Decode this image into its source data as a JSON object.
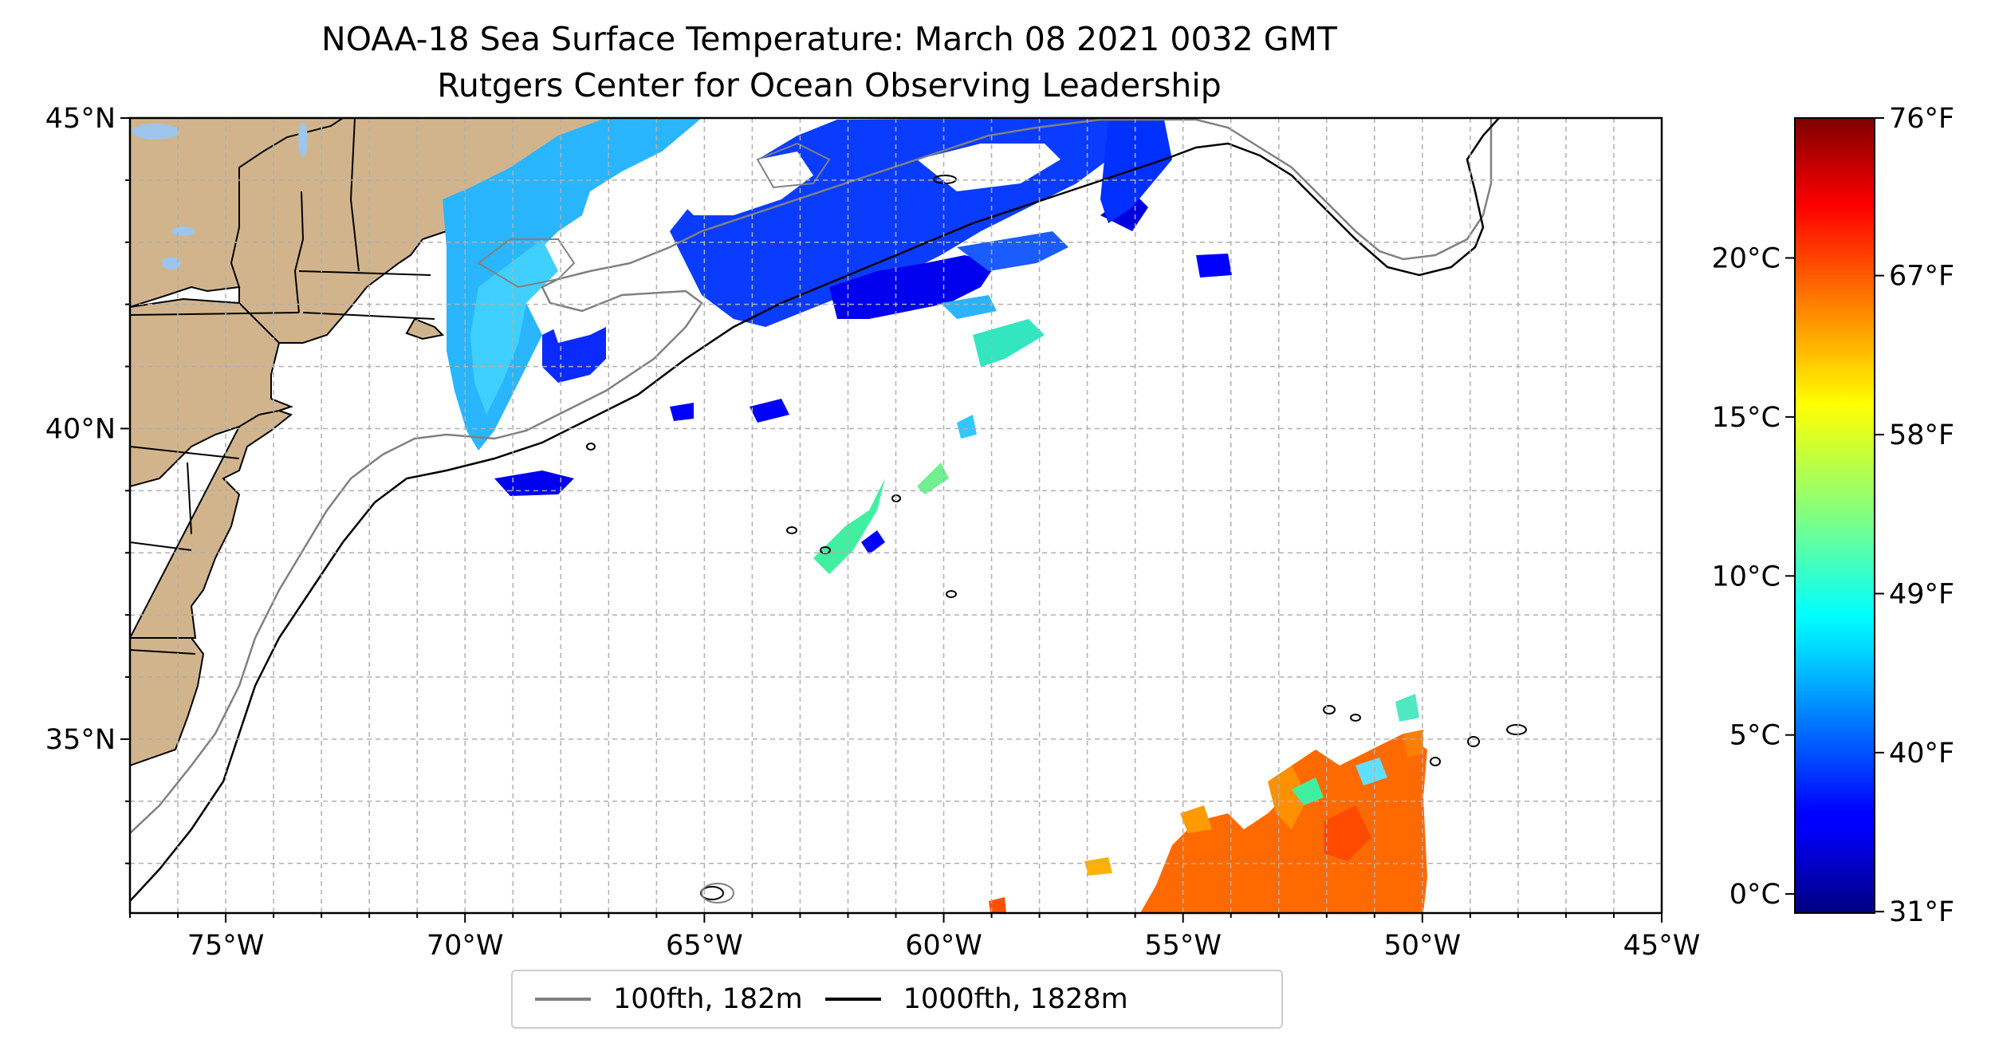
{
  "title": {
    "line1": "NOAA-18 Sea Surface Temperature: March 08 2021 0032 GMT",
    "line2": "Rutgers Center for Ocean Observing Leadership"
  },
  "map": {
    "lon_range": [
      -77,
      -45
    ],
    "lat_range": [
      32.2,
      45
    ],
    "lon_ticks": [
      {
        "value": -75,
        "label": "75°W"
      },
      {
        "value": -70,
        "label": "70°W"
      },
      {
        "value": -65,
        "label": "65°W"
      },
      {
        "value": -60,
        "label": "60°W"
      },
      {
        "value": -55,
        "label": "55°W"
      },
      {
        "value": -50,
        "label": "50°W"
      },
      {
        "value": -45,
        "label": "45°W"
      }
    ],
    "lat_ticks": [
      {
        "value": 45,
        "label": "45°N"
      },
      {
        "value": 40,
        "label": "40°N"
      },
      {
        "value": 35,
        "label": "35°N"
      }
    ],
    "gridlines": "dashed, 1° spacing",
    "land_color": "#d2b48c",
    "lake_color": "#9ec5ea"
  },
  "colorbar": {
    "colormap": "jet",
    "celsius_range": [
      -0.6,
      24.4
    ],
    "celsius_ticks": [
      {
        "value": 0,
        "label": "0°C"
      },
      {
        "value": 5,
        "label": "5°C"
      },
      {
        "value": 10,
        "label": "10°C"
      },
      {
        "value": 15,
        "label": "15°C"
      },
      {
        "value": 20,
        "label": "20°C"
      }
    ],
    "fahrenheit_ticks": [
      {
        "value": 31,
        "label": "31°F"
      },
      {
        "value": 40,
        "label": "40°F"
      },
      {
        "value": 49,
        "label": "49°F"
      },
      {
        "value": 58,
        "label": "58°F"
      },
      {
        "value": 67,
        "label": "67°F"
      },
      {
        "value": 76,
        "label": "76°F"
      }
    ]
  },
  "legend": {
    "placement": "bottom-center",
    "items": [
      {
        "label": "100fth, 182m",
        "color": "#808080"
      },
      {
        "label": "1000fth, 1828m",
        "color": "#000000"
      }
    ]
  }
}
